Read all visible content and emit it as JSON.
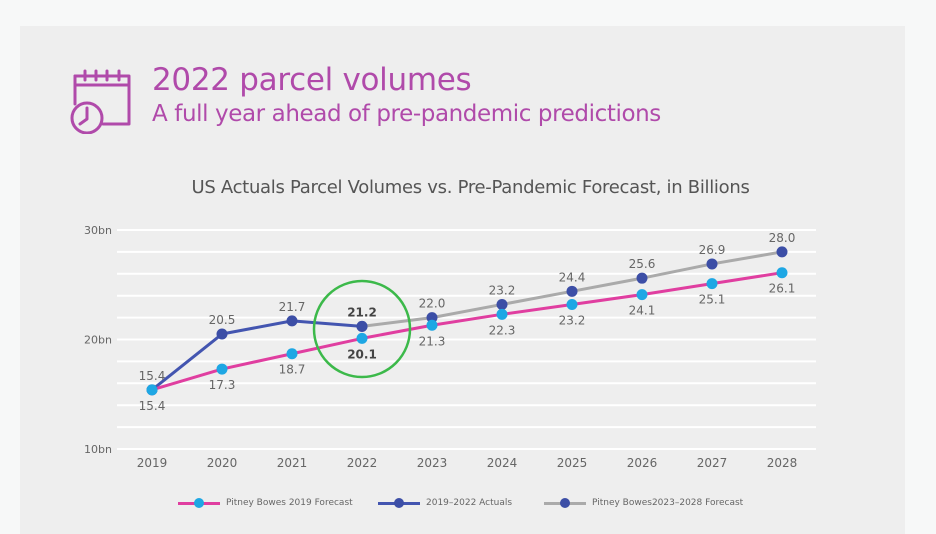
{
  "header": {
    "icon": "calendar-clock-icon",
    "title": "2022 parcel volumes",
    "subtitle": "A full year ahead of pre-pandemic predictions"
  },
  "colors": {
    "accent": "#b04aaa",
    "forecast_2019_line": "#e03ea0",
    "forecast_2019_marker": "#1ea7e4",
    "actuals_line": "#4355b0",
    "actuals_marker": "#3c4ea6",
    "forecast_2023_line": "#aaaaaa",
    "forecast_2023_marker": "#3c4ea6",
    "highlight_circle": "#3cb94a"
  },
  "chart_data": {
    "type": "line",
    "title": "US Actuals Parcel Volumes vs. Pre-Pandemic Forecast, in Billions",
    "xlabel": "",
    "ylabel": "",
    "ylim": [
      10,
      30
    ],
    "y_ticks": [
      10,
      20,
      30
    ],
    "y_tick_labels": [
      "10bn",
      "20bn",
      "30bn"
    ],
    "gridline_step": 2,
    "grid": true,
    "categories": [
      "2019",
      "2020",
      "2021",
      "2022",
      "2023",
      "2024",
      "2025",
      "2026",
      "2027",
      "2028"
    ],
    "series": [
      {
        "name": "Pitney Bowes 2019 Forecast",
        "x": [
          "2019",
          "2020",
          "2021",
          "2022",
          "2023",
          "2024",
          "2025",
          "2026",
          "2027",
          "2028"
        ],
        "values": [
          15.4,
          17.3,
          18.7,
          20.1,
          21.3,
          22.3,
          23.2,
          24.1,
          25.1,
          26.1
        ],
        "labels": [
          "15.4",
          "17.3",
          "18.7",
          "20.1",
          "21.3",
          "22.3",
          "23.2",
          "24.1",
          "25.1",
          "26.1"
        ],
        "label_position": "below"
      },
      {
        "name": "2019-2022 Actuals",
        "x": [
          "2019",
          "2020",
          "2021",
          "2022"
        ],
        "values": [
          15.4,
          20.5,
          21.7,
          21.2
        ],
        "labels": [
          "15.4",
          "20.5",
          "21.7",
          "21.2"
        ],
        "label_position": "above"
      },
      {
        "name": "Pitney Bowes2023-2028 Forecast",
        "x": [
          "2022",
          "2023",
          "2024",
          "2025",
          "2026",
          "2027",
          "2028"
        ],
        "values": [
          21.2,
          22.0,
          23.2,
          24.4,
          25.6,
          26.9,
          28.0
        ],
        "labels": [
          "",
          "22.0",
          "23.2",
          "24.4",
          "25.6",
          "26.9",
          "28.0"
        ],
        "label_position": "above"
      }
    ],
    "annotations": [
      {
        "type": "circle",
        "target": "2022",
        "note": "highlight"
      }
    ],
    "legend": {
      "placement": "bottom",
      "entries": [
        "Pitney Bowes 2019 Forecast",
        "2019–2022 Actuals",
        "Pitney Bowes2023–2028 Forecast"
      ]
    }
  }
}
